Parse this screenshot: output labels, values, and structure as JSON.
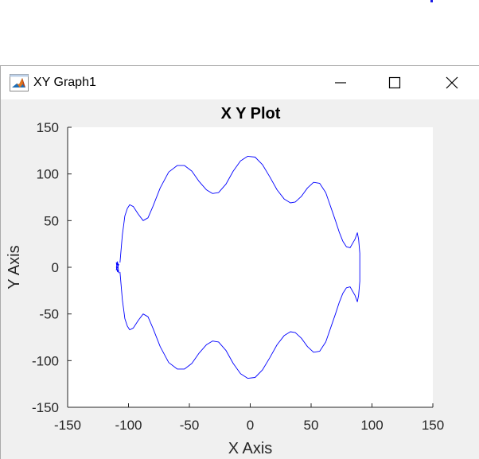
{
  "window": {
    "title": "XY Graph1",
    "icon": "matlab-logo-icon",
    "controls": [
      "minimize-icon",
      "maximize-icon",
      "close-icon"
    ]
  },
  "chart_data": {
    "type": "line",
    "title": "X Y Plot",
    "xlabel": "X Axis",
    "ylabel": "Y Axis",
    "xlim": [
      -150,
      150
    ],
    "ylim": [
      -150,
      150
    ],
    "xticks": [
      -150,
      -100,
      -50,
      0,
      50,
      100,
      150
    ],
    "yticks": [
      -150,
      -100,
      -50,
      0,
      50,
      100,
      150
    ],
    "grid": false,
    "legend": "none",
    "series": [
      {
        "color": "#0000ff",
        "x": [
          -107,
          -106,
          -105,
          -104,
          -103,
          -101,
          -99,
          -96,
          -92,
          -88,
          -84,
          -80,
          -74,
          -67,
          -60,
          -54,
          -48,
          -42,
          -36,
          -31,
          -26,
          -20,
          -14,
          -8,
          -2,
          4,
          10,
          16,
          22,
          28,
          33,
          37,
          42,
          47,
          52,
          57,
          62,
          66,
          70,
          73,
          76,
          79,
          82,
          86,
          88,
          89,
          90,
          90,
          89,
          88,
          86,
          82,
          79,
          76,
          73,
          70,
          66,
          62,
          57,
          52,
          47,
          42,
          37,
          33,
          28,
          22,
          16,
          10,
          4,
          -2,
          -8,
          -14,
          -20,
          -26,
          -31,
          -36,
          -42,
          -48,
          -54,
          -60,
          -67,
          -74,
          -80,
          -84,
          -88,
          -92,
          -96,
          -99,
          -101,
          -103,
          -104,
          -105,
          -106,
          -107
        ],
        "y": [
          5,
          20,
          35,
          45,
          55,
          63,
          67,
          65,
          57,
          50,
          53,
          65,
          85,
          102,
          109,
          109,
          103,
          92,
          83,
          79,
          80,
          89,
          103,
          114,
          119,
          118,
          110,
          97,
          83,
          73,
          69,
          70,
          76,
          85,
          91,
          90,
          80,
          65,
          50,
          38,
          28,
          22,
          21,
          30,
          37,
          30,
          15,
          -15,
          -30,
          -37,
          -30,
          -21,
          -22,
          -28,
          -38,
          -50,
          -65,
          -80,
          -90,
          -91,
          -85,
          -76,
          -70,
          -69,
          -73,
          -83,
          -97,
          -110,
          -118,
          -119,
          -114,
          -103,
          -89,
          -80,
          -79,
          -83,
          -92,
          -103,
          -109,
          -109,
          -102,
          -85,
          -65,
          -53,
          -50,
          -57,
          -65,
          -67,
          -63,
          -55,
          -45,
          -35,
          -20,
          -5
        ]
      },
      {
        "color": "#0000ff",
        "x": [
          -109,
          -110,
          -108,
          -110,
          -109,
          -108,
          -110,
          -109
        ],
        "y": [
          -5,
          5,
          3,
          -3,
          6,
          -6,
          0,
          4
        ]
      }
    ]
  }
}
